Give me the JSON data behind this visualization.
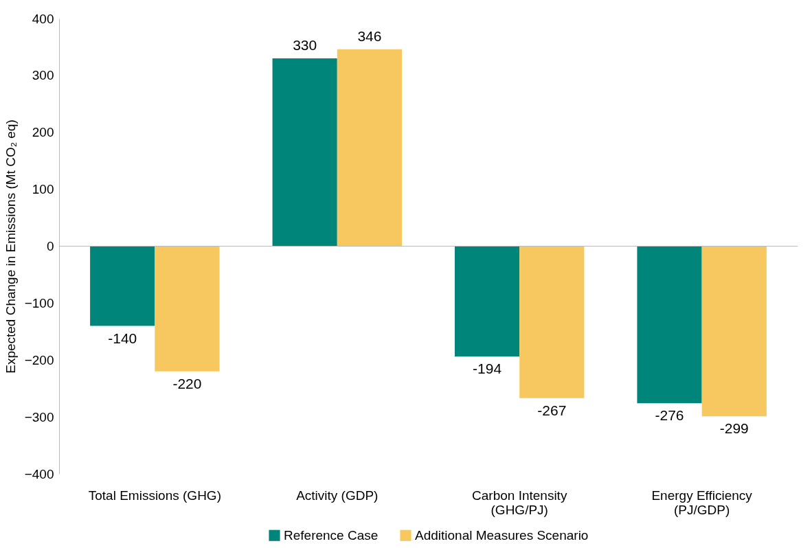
{
  "chart_data": {
    "type": "bar",
    "ylabel": "Expected Change in Emissions  (Mt CO₂ eq)",
    "categories": [
      "Total Emissions (GHG)",
      "Activity (GDP)",
      "Carbon Intensity (GHG/PJ)",
      "Energy Efficiency (PJ/GDP)"
    ],
    "series": [
      {
        "name": "Reference Case",
        "color": "#00857a",
        "values": [
          -140,
          330,
          -194,
          -276
        ]
      },
      {
        "name": "Additional Measures Scenario",
        "color": "#f6c85f",
        "values": [
          -220,
          346,
          -267,
          -299
        ]
      }
    ],
    "ylim": [
      -400,
      400
    ],
    "yticks": [
      -400,
      -300,
      -200,
      -100,
      0,
      100,
      200,
      300,
      400
    ],
    "legend": "bottom",
    "data_labels": true
  }
}
